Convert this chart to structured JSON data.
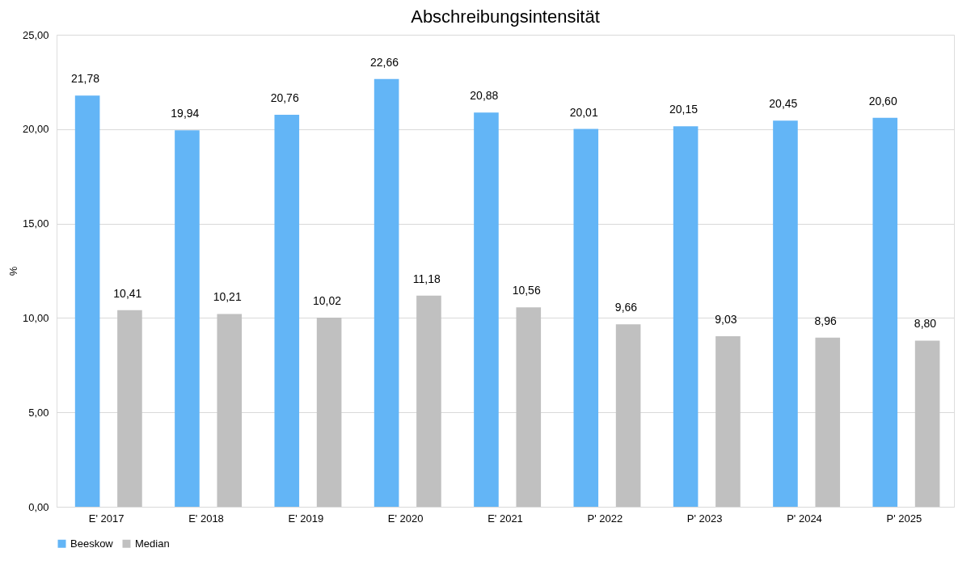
{
  "chart_data": {
    "type": "bar",
    "title": "Abschreibungsintensität",
    "ylabel": "%",
    "categories": [
      "E' 2017",
      "E' 2018",
      "E' 2019",
      "E' 2020",
      "E' 2021",
      "P' 2022",
      "P' 2023",
      "P' 2024",
      "P' 2025"
    ],
    "series": [
      {
        "name": "Beeskow",
        "color": "#63b5f6",
        "values": [
          21.78,
          19.94,
          20.76,
          22.66,
          20.88,
          20.01,
          20.15,
          20.45,
          20.6
        ],
        "value_labels": [
          "21,78",
          "19,94",
          "20,76",
          "22,66",
          "20,88",
          "20,01",
          "20,15",
          "20,45",
          "20,60"
        ]
      },
      {
        "name": "Median",
        "color": "#c0c0c0",
        "values": [
          10.41,
          10.21,
          10.02,
          11.18,
          10.56,
          9.66,
          9.03,
          8.96,
          8.8
        ],
        "value_labels": [
          "10,41",
          "10,21",
          "10,02",
          "11,18",
          "10,56",
          "9,66",
          "9,03",
          "8,96",
          "8,80"
        ]
      }
    ],
    "ylim": [
      0,
      25
    ],
    "yticks": [
      {
        "value": 0,
        "label": "0,00"
      },
      {
        "value": 5,
        "label": "5,00"
      },
      {
        "value": 10,
        "label": "10,00"
      },
      {
        "value": 15,
        "label": "15,00"
      },
      {
        "value": 20,
        "label": "20,00"
      },
      {
        "value": 25,
        "label": "25,00"
      }
    ],
    "grid": "y",
    "legend": "bottom"
  }
}
